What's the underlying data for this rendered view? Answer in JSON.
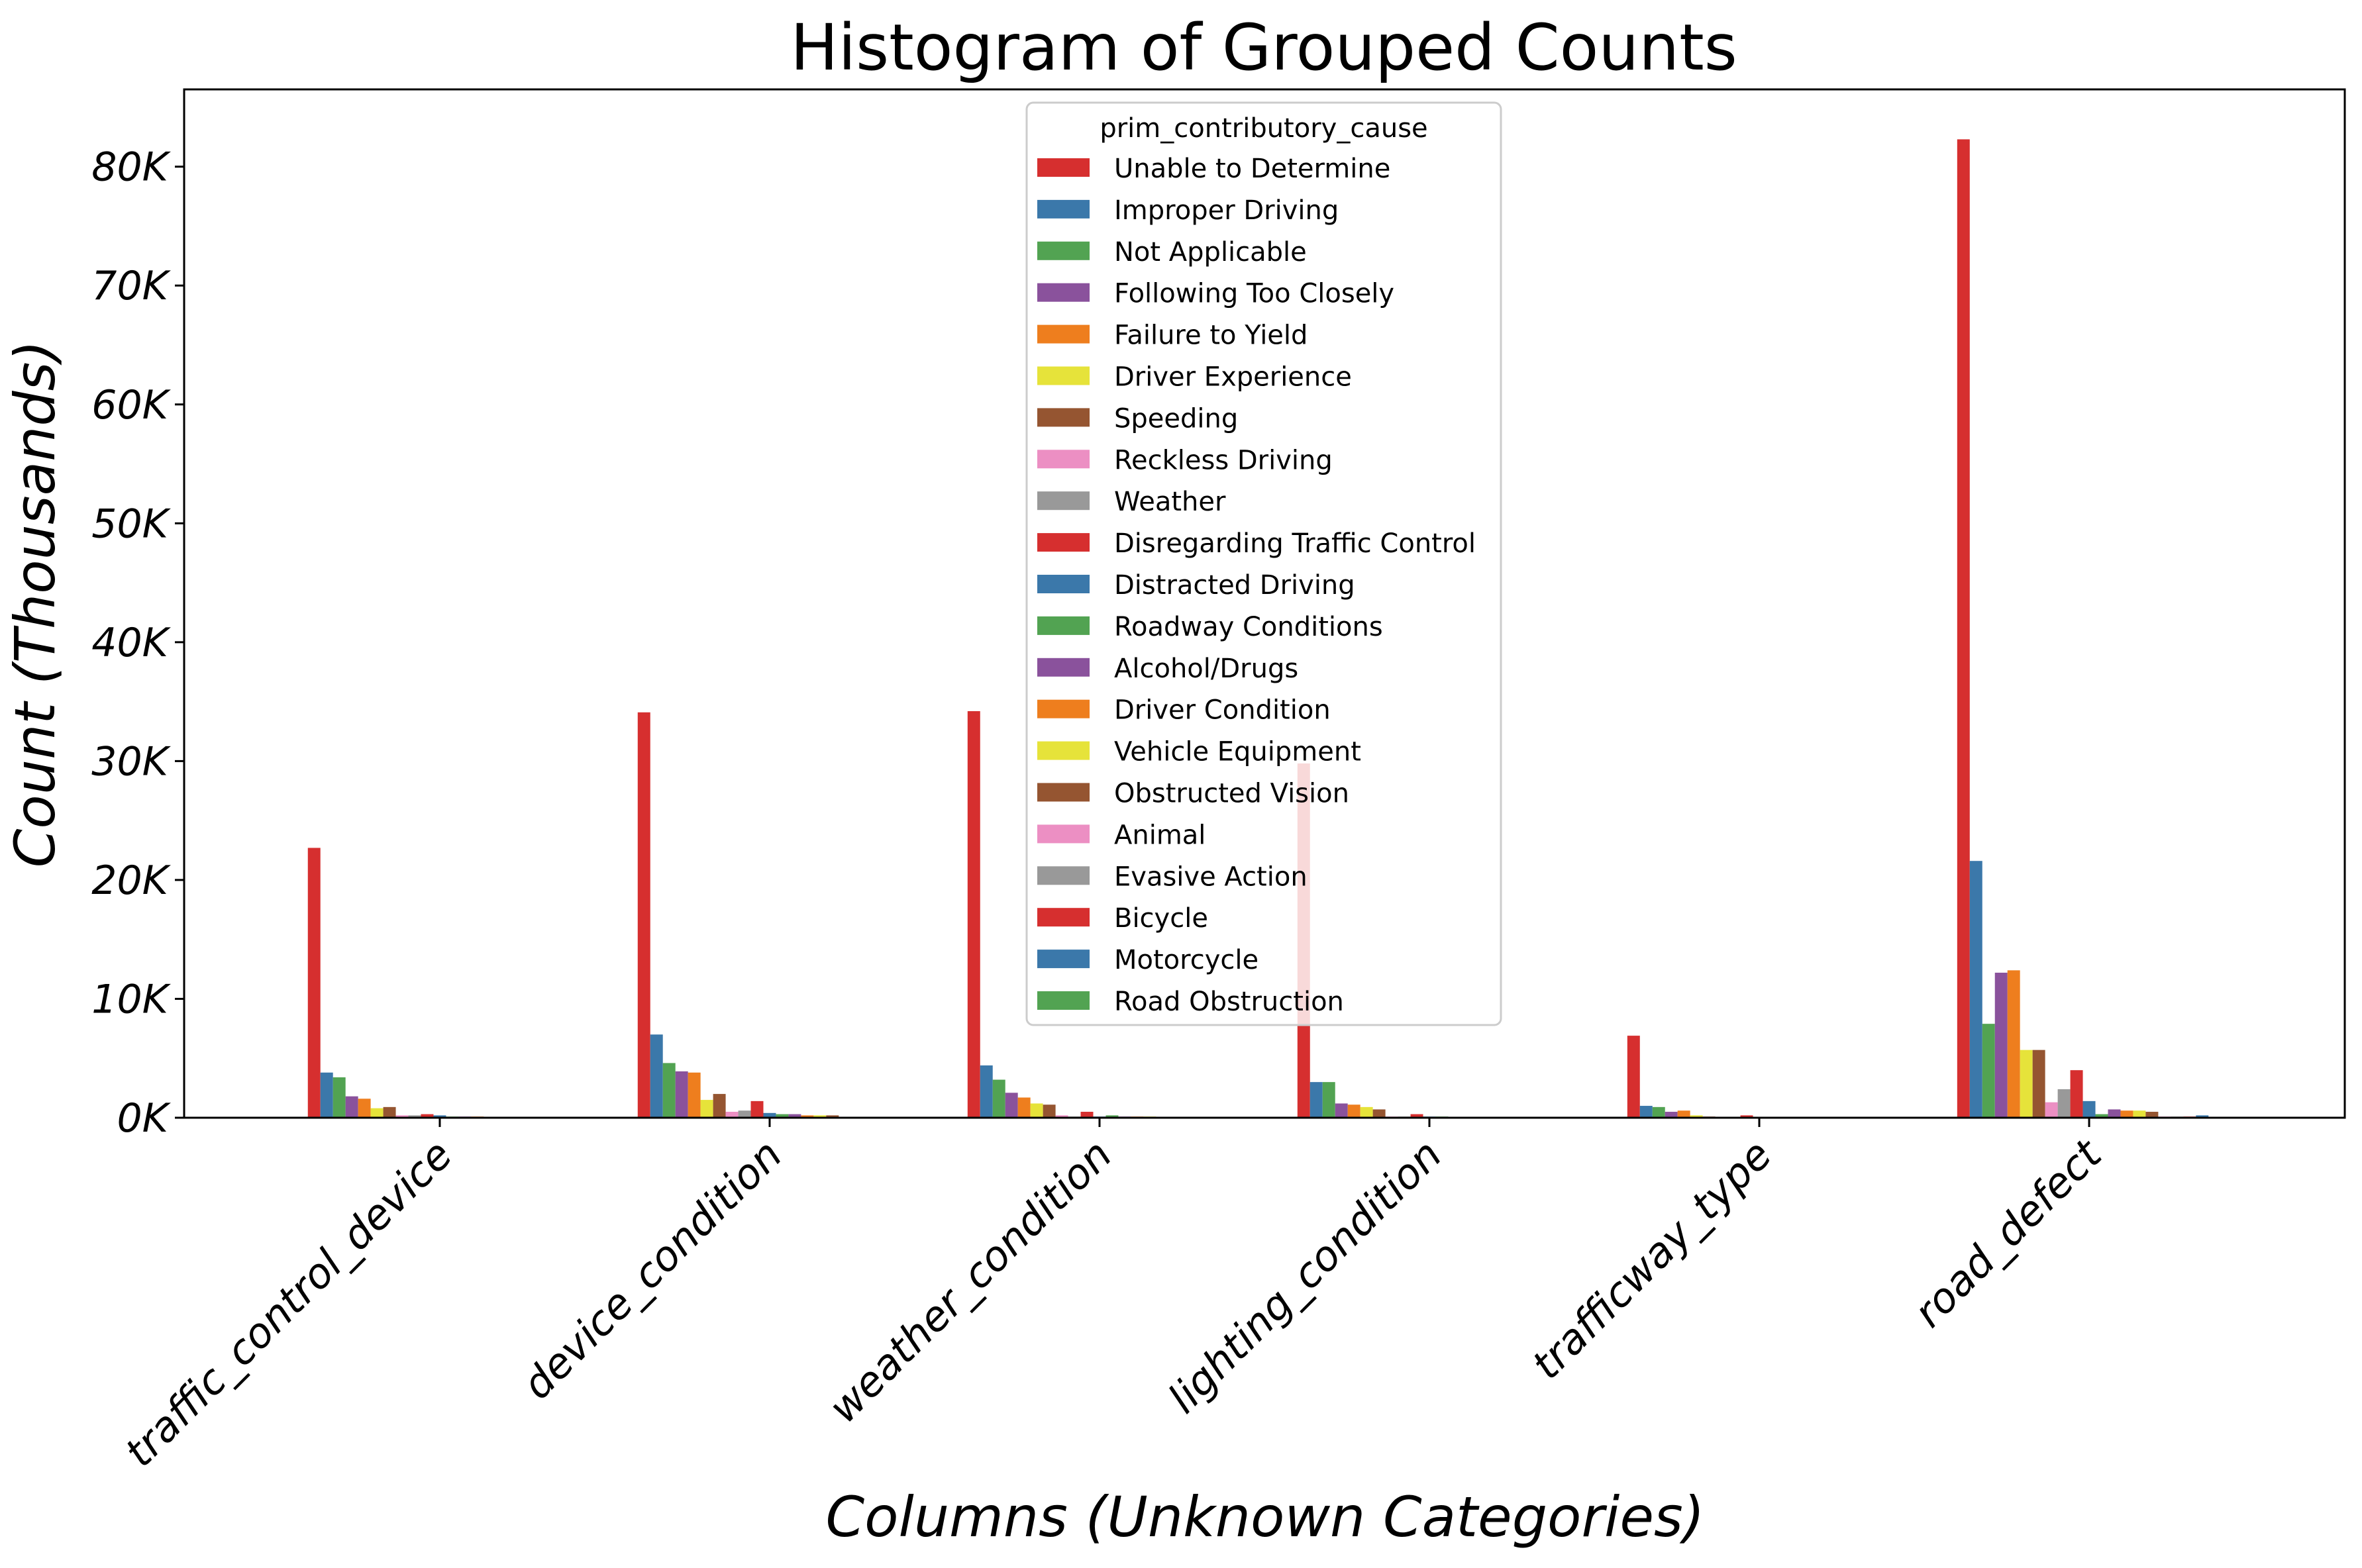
{
  "chart_data": {
    "type": "bar",
    "title": "Histogram of Grouped Counts",
    "xlabel": "Columns (Unknown Categories)",
    "ylabel": "Count (Thousands)",
    "ylim": [
      0,
      86500
    ],
    "yticks": [
      0,
      10000,
      20000,
      30000,
      40000,
      50000,
      60000,
      70000,
      80000
    ],
    "ytick_labels": [
      "0K",
      "10K",
      "20K",
      "30K",
      "40K",
      "50K",
      "60K",
      "70K",
      "80K"
    ],
    "grid": false,
    "legend_position": "upper center",
    "legend_title": "prim_contributory_cause",
    "categories": [
      "traffic_control_device",
      "device_condition",
      "weather_condition",
      "lighting_condition",
      "trafficway_type",
      "road_defect"
    ],
    "series": [
      {
        "name": "Unable to Determine",
        "color": "#d62f2f",
        "values": [
          22700,
          34100,
          34200,
          29800,
          6900,
          82300
        ]
      },
      {
        "name": "Improper Driving",
        "color": "#3b78aa",
        "values": [
          3800,
          7000,
          4400,
          3000,
          1000,
          21600
        ]
      },
      {
        "name": "Not Applicable",
        "color": "#52a352",
        "values": [
          3400,
          4600,
          3200,
          3000,
          900,
          7900
        ]
      },
      {
        "name": "Following Too Closely",
        "color": "#8a529c",
        "values": [
          1800,
          3900,
          2100,
          1200,
          500,
          12200
        ]
      },
      {
        "name": "Failure to Yield",
        "color": "#ee7e1e",
        "values": [
          1600,
          3800,
          1700,
          1100,
          600,
          12400
        ]
      },
      {
        "name": "Driver Experience",
        "color": "#e6e33a",
        "values": [
          800,
          1500,
          1200,
          900,
          200,
          5700
        ]
      },
      {
        "name": "Speeding",
        "color": "#955531",
        "values": [
          900,
          2000,
          1100,
          700,
          100,
          5700
        ]
      },
      {
        "name": "Reckless Driving",
        "color": "#ec8fc3",
        "values": [
          200,
          500,
          200,
          100,
          50,
          1300
        ]
      },
      {
        "name": "Weather",
        "color": "#999999",
        "values": [
          200,
          600,
          100,
          100,
          50,
          2400
        ]
      },
      {
        "name": "Disregarding Traffic Control",
        "color": "#d62f2f",
        "values": [
          300,
          1400,
          500,
          300,
          200,
          4000
        ]
      },
      {
        "name": "Distracted Driving",
        "color": "#3b78aa",
        "values": [
          200,
          400,
          100,
          100,
          50,
          1400
        ]
      },
      {
        "name": "Roadway Conditions",
        "color": "#52a352",
        "values": [
          100,
          300,
          200,
          100,
          50,
          300
        ]
      },
      {
        "name": "Alcohol/Drugs",
        "color": "#8a529c",
        "values": [
          100,
          300,
          100,
          50,
          50,
          700
        ]
      },
      {
        "name": "Driver Condition",
        "color": "#ee7e1e",
        "values": [
          100,
          200,
          100,
          50,
          50,
          600
        ]
      },
      {
        "name": "Vehicle Equipment",
        "color": "#e6e33a",
        "values": [
          50,
          200,
          100,
          50,
          50,
          600
        ]
      },
      {
        "name": "Obstructed Vision",
        "color": "#955531",
        "values": [
          50,
          200,
          50,
          50,
          50,
          500
        ]
      },
      {
        "name": "Animal",
        "color": "#ec8fc3",
        "values": [
          20,
          50,
          20,
          20,
          10,
          100
        ]
      },
      {
        "name": "Evasive Action",
        "color": "#999999",
        "values": [
          20,
          50,
          20,
          20,
          10,
          100
        ]
      },
      {
        "name": "Bicycle",
        "color": "#d62f2f",
        "values": [
          20,
          50,
          20,
          20,
          10,
          100
        ]
      },
      {
        "name": "Motorcycle",
        "color": "#3b78aa",
        "values": [
          20,
          50,
          20,
          20,
          10,
          200
        ]
      },
      {
        "name": "Road Obstruction",
        "color": "#52a352",
        "values": [
          10,
          30,
          10,
          10,
          10,
          50
        ]
      }
    ]
  }
}
